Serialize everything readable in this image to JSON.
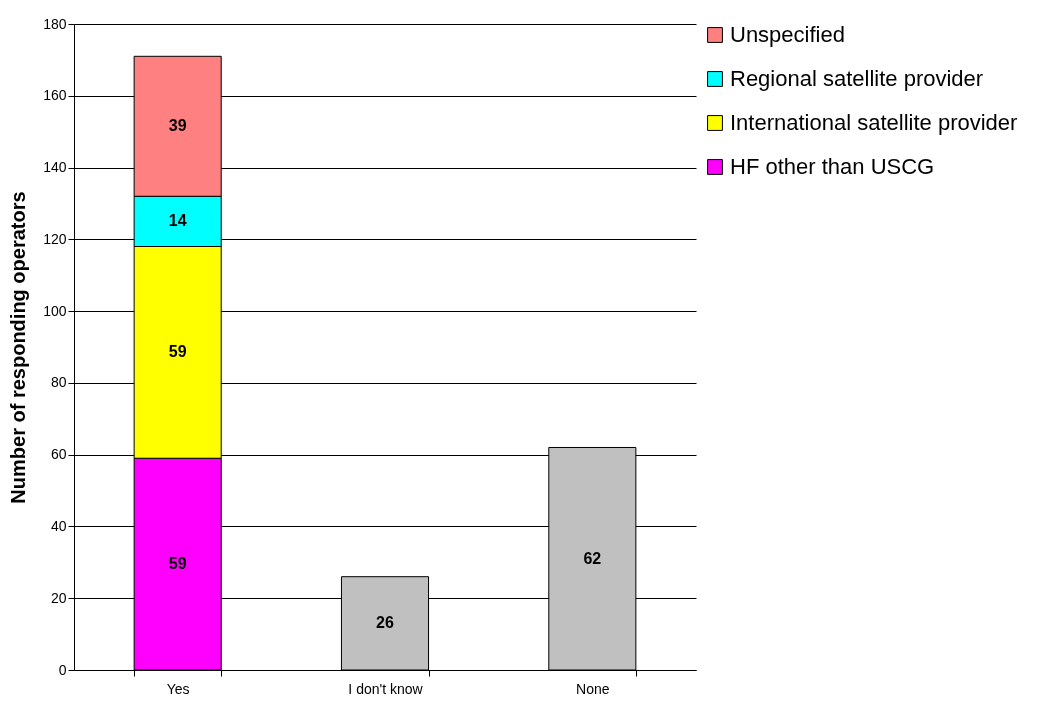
{
  "chart_data": {
    "type": "bar",
    "ylabel": "Number of responding operators",
    "categories": [
      "Yes",
      "I don't know",
      "None"
    ],
    "stacked": true,
    "ylim": [
      0,
      180
    ],
    "yticks": [
      0,
      20,
      40,
      60,
      80,
      100,
      120,
      140,
      160,
      180
    ],
    "grid": "y",
    "legend": "right",
    "data_labels": true,
    "series": [
      {
        "name": "HF other than USCG",
        "color": "#ff00ff",
        "values": [
          59,
          null,
          null
        ]
      },
      {
        "name": "International satellite provider",
        "color": "#ffff00",
        "values": [
          59,
          null,
          null
        ]
      },
      {
        "name": "Regional satellite provider",
        "color": "#00ffff",
        "values": [
          14,
          null,
          null
        ]
      },
      {
        "name": "Unspecified",
        "color": "#ff8080",
        "values": [
          39,
          null,
          null
        ]
      },
      {
        "color": "#c0c0c0",
        "values": [
          null,
          26,
          62
        ]
      }
    ]
  }
}
